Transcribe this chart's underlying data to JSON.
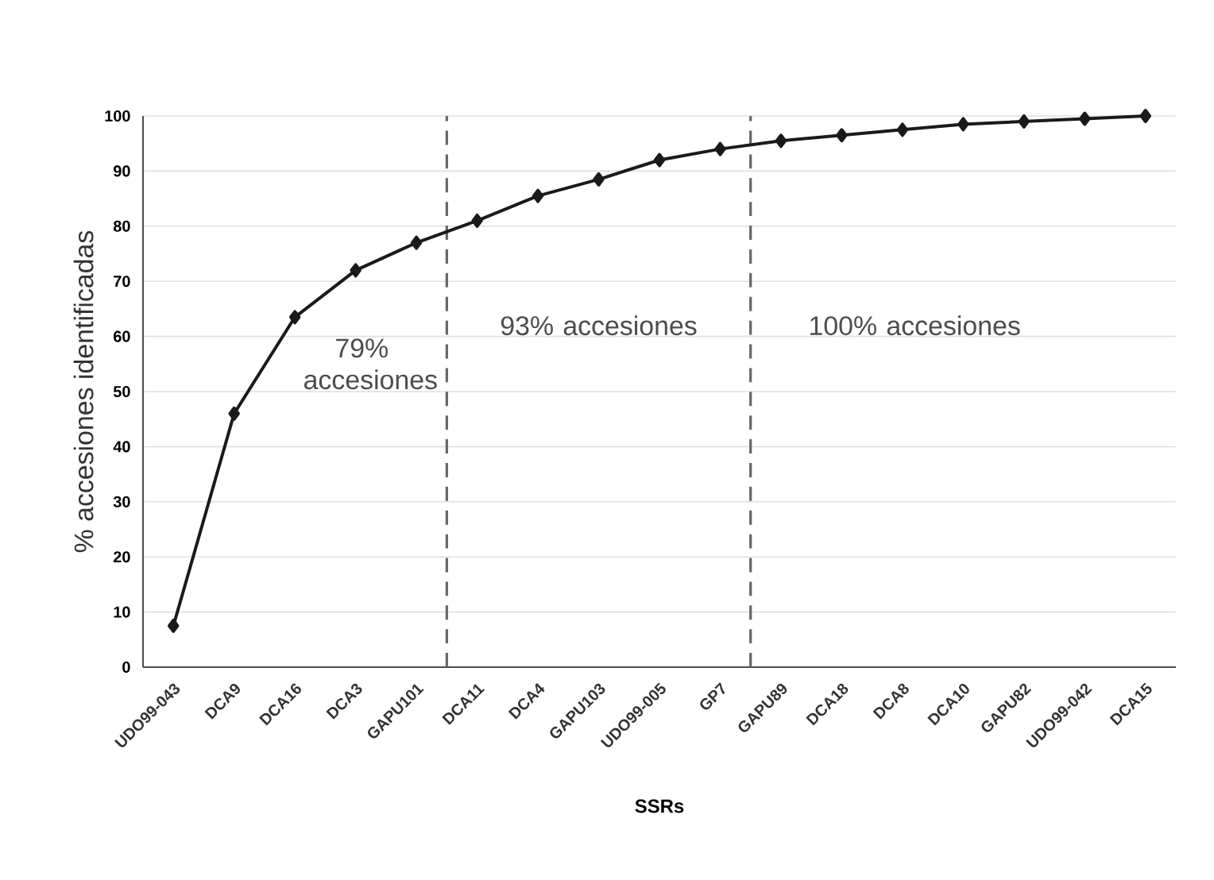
{
  "chart_data": {
    "type": "line",
    "xlabel": "SSRs",
    "ylabel": "% accesiones identificadas",
    "categories": [
      "UDO99-043",
      "DCA9",
      "DCA16",
      "DCA3",
      "GAPU101",
      "DCA11",
      "DCA4",
      "GAPU103",
      "UDO99-005",
      "GP7",
      "GAPU89",
      "DCA18",
      "DCA8",
      "DCA10",
      "GAPU82",
      "UDO99-042",
      "DCA15"
    ],
    "values": [
      7.5,
      46,
      63.5,
      72,
      77,
      81,
      85.5,
      88.5,
      92,
      94,
      95.5,
      96.5,
      97.5,
      98.5,
      99,
      99.5,
      100
    ],
    "color": "#1a1a1a",
    "marker": "diamond",
    "line_style": "solid",
    "ylim": [
      0,
      100
    ],
    "yticks": [
      0,
      10,
      20,
      30,
      40,
      50,
      60,
      70,
      80,
      90,
      100
    ],
    "grid": "y",
    "annotations": [
      "79% accesiones",
      "93% accesiones",
      "100% accesiones"
    ]
  }
}
